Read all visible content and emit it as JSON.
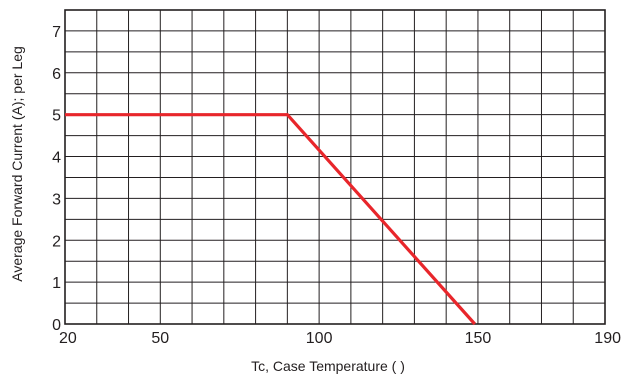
{
  "chart_data": {
    "type": "line",
    "xlabel": "Tc, Case Temperature (   )",
    "ylabel": "Average Forward Current (A); per Leg",
    "xlim": [
      20,
      190
    ],
    "ylim": [
      0,
      7.5
    ],
    "x_ticks": [
      20,
      50,
      100,
      150,
      190
    ],
    "y_ticks": [
      0,
      1,
      2,
      3,
      4,
      5,
      6,
      7
    ],
    "grid": true,
    "legend": "none",
    "series": [
      {
        "color": "#e8262b",
        "points": [
          {
            "x": 20,
            "y": 5
          },
          {
            "x": 90,
            "y": 5
          },
          {
            "x": 149,
            "y": 0
          }
        ]
      }
    ]
  }
}
